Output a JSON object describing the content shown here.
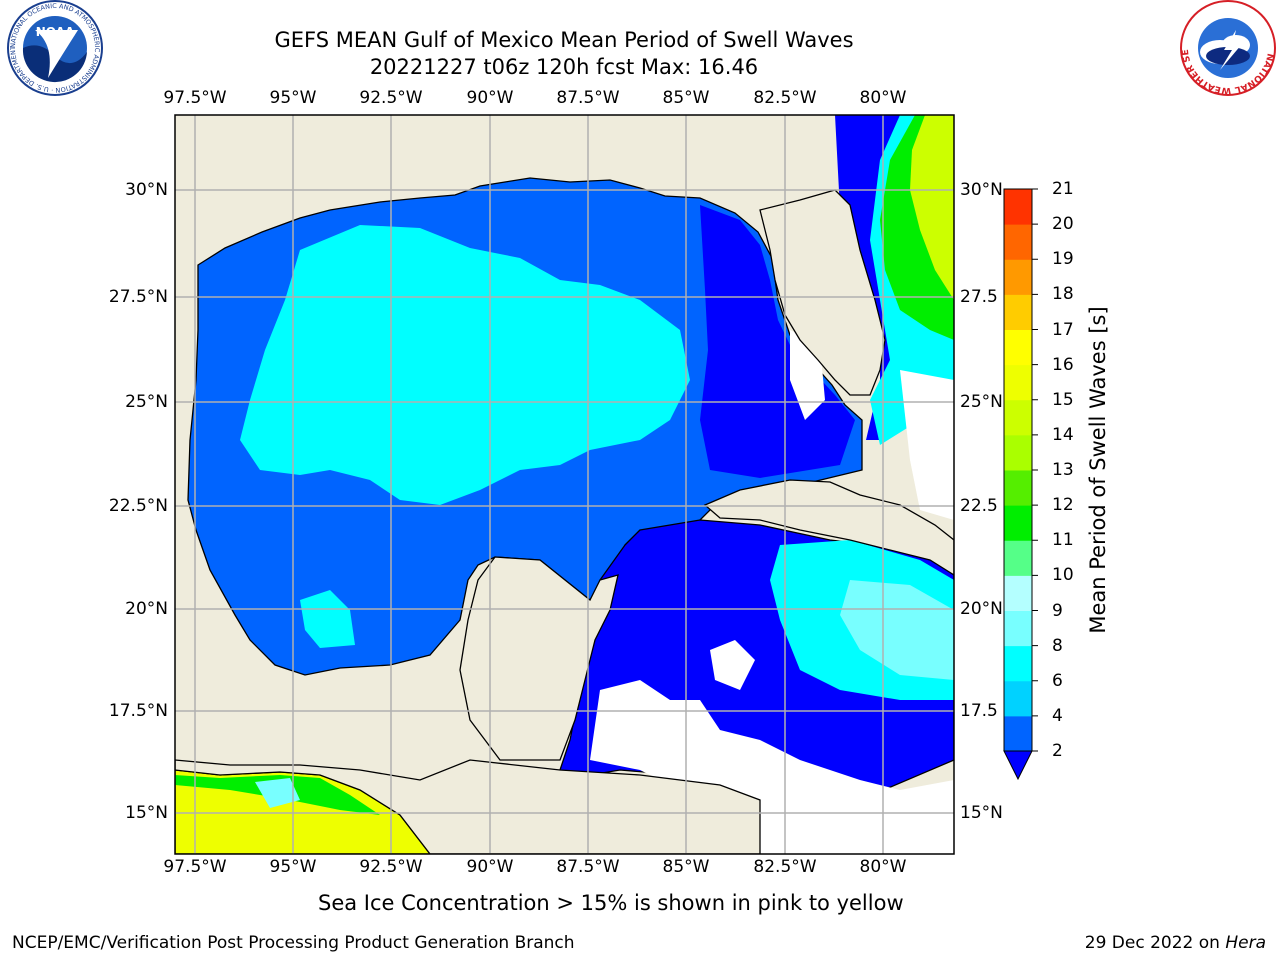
{
  "header": {
    "title_line1": "GEFS MEAN Gulf of Mexico Mean Period of Swell Waves",
    "title_line2": "20221227 t06z 120h fcst   Max: 16.46"
  },
  "logos": {
    "left": {
      "name": "noaa-logo",
      "text": "NOAA",
      "ring_text": "NATIONAL OCEANIC AND ATMOSPHERIC ADMINISTRATION · U.S. DEPARTMENT OF COMMERCE"
    },
    "right": {
      "name": "nws-logo",
      "ring_text": "NATIONAL WEATHER SERVICE"
    }
  },
  "map": {
    "lon_ticks": [
      "97.5°W",
      "95°W",
      "92.5°W",
      "90°W",
      "87.5°W",
      "85°W",
      "82.5°W",
      "80°W"
    ],
    "lat_ticks_left": [
      "30°N",
      "27.5°N",
      "25°N",
      "22.5°N",
      "20°N",
      "17.5°N",
      "15°N"
    ],
    "lat_ticks_right": [
      "30°N",
      "27.5",
      "25°N",
      "22.5",
      "20°N",
      "17.5",
      "15°N"
    ],
    "colors": {
      "land": "#efecdc",
      "ocean_dark": "#0000ff",
      "ocean_mid": "#0064ff",
      "ocean_cyan": "#00ffff",
      "grid": "#b0b0b0"
    }
  },
  "colorbar": {
    "label": "Mean Period of Swell Waves [s]",
    "levels": [
      "2",
      "4",
      "6",
      "8",
      "9",
      "10",
      "11",
      "12",
      "13",
      "14",
      "15",
      "16",
      "17",
      "18",
      "19",
      "20",
      "21"
    ],
    "colors": [
      "#0064ff",
      "#00d2ff",
      "#00ffff",
      "#78ffff",
      "#b4ffff",
      "#55ff88",
      "#00ee00",
      "#55ee00",
      "#aaff00",
      "#ccff00",
      "#eeff00",
      "#ffff00",
      "#ffcc00",
      "#ff9900",
      "#ff6600",
      "#ff3300",
      "#ff0000"
    ],
    "extend_color": "#0000ff"
  },
  "note": "Sea Ice Concentration > 15% is shown in pink to yellow",
  "footer": {
    "left": "NCEP/EMC/Verification Post Processing Product Generation Branch",
    "right_prefix": "29 Dec 2022 on",
    "right_host": "Hera"
  }
}
